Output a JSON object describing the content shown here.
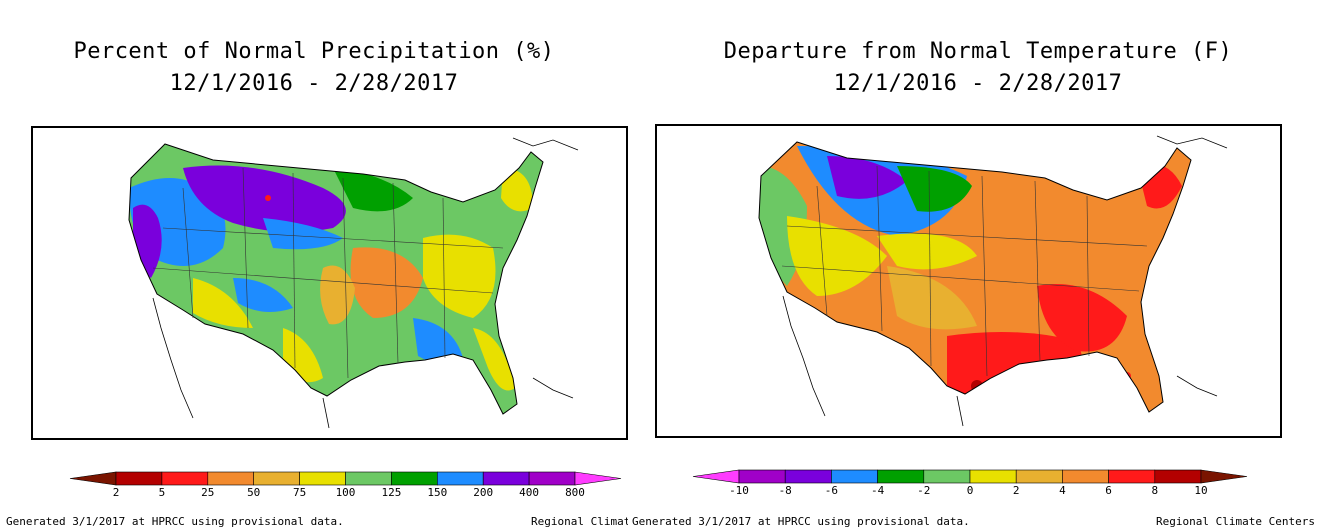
{
  "maps": [
    {
      "title_line1": "Percent of Normal Precipitation (%)",
      "title_line2": "12/1/2016 - 2/28/2017",
      "legend": {
        "ticks": [
          "2",
          "5",
          "25",
          "50",
          "75",
          "100",
          "125",
          "150",
          "200",
          "400",
          "800"
        ],
        "colors": [
          "#7a1400",
          "#b30000",
          "#ff1a1a",
          "#f28a2e",
          "#e8b030",
          "#e8e000",
          "#6cc864",
          "#00a000",
          "#1e8cff",
          "#7a00dc",
          "#a000c8",
          "#ff3cff"
        ]
      },
      "footer_left": "Generated 3/1/2017 at HPRCC using provisional data.",
      "footer_right": "Regional Climat"
    },
    {
      "title_line1": "Departure from Normal Temperature (F)",
      "title_line2": "12/1/2016 - 2/28/2017",
      "legend": {
        "ticks": [
          "-10",
          "-8",
          "-6",
          "-4",
          "-2",
          "0",
          "2",
          "4",
          "6",
          "8",
          "10"
        ],
        "colors": [
          "#ff3cff",
          "#a000c8",
          "#7a00dc",
          "#1e8cff",
          "#00a000",
          "#6cc864",
          "#e8e000",
          "#e8b030",
          "#f28a2e",
          "#ff1a1a",
          "#b30000",
          "#7a1400"
        ]
      },
      "footer_left": "Generated 3/1/2017 at HPRCC using provisional data.",
      "footer_right": "Regional Climate Centers"
    }
  ]
}
